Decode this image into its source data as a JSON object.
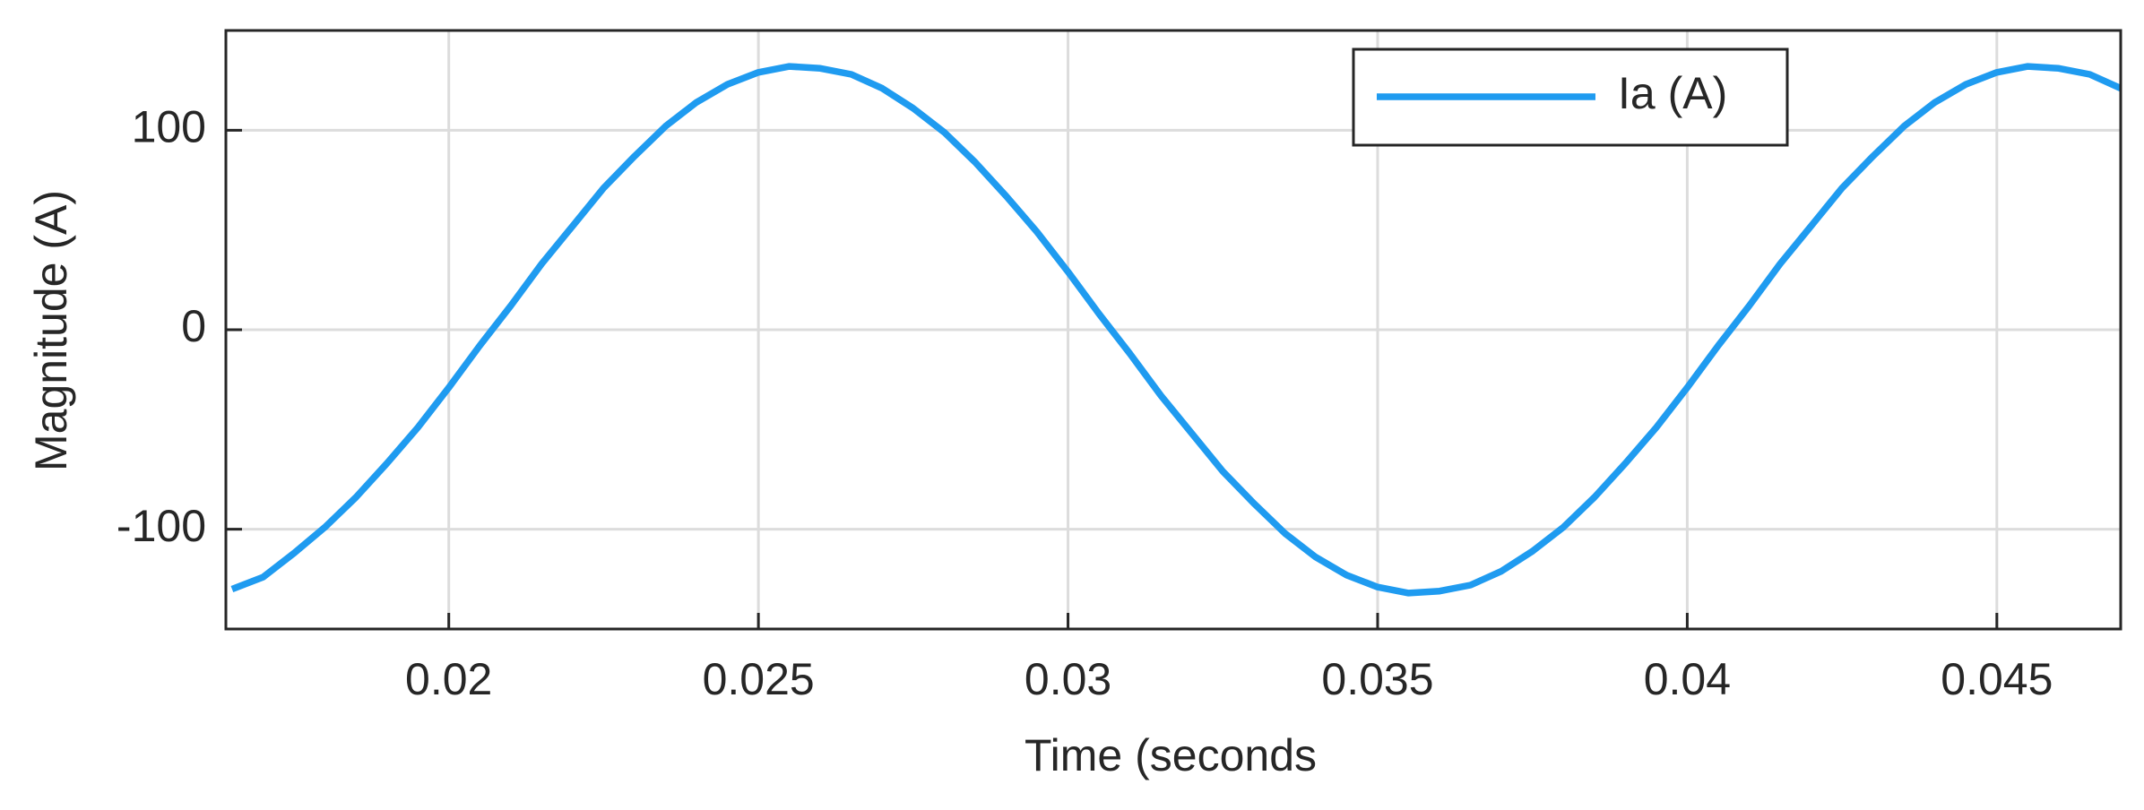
{
  "chart_data": {
    "type": "line",
    "x_label": "Time (seconds",
    "y_label": "Magnitude (A)",
    "x": [
      0.0165,
      0.017,
      0.0175,
      0.018,
      0.0185,
      0.019,
      0.0195,
      0.02,
      0.0205,
      0.021,
      0.0215,
      0.022,
      0.0225,
      0.023,
      0.0235,
      0.024,
      0.0245,
      0.025,
      0.0255,
      0.026,
      0.0265,
      0.027,
      0.0275,
      0.028,
      0.0285,
      0.029,
      0.0295,
      0.03,
      0.0305,
      0.031,
      0.0315,
      0.032,
      0.0325,
      0.033,
      0.0335,
      0.034,
      0.0345,
      0.035,
      0.0355,
      0.036,
      0.0365,
      0.037,
      0.0375,
      0.038,
      0.0385,
      0.039,
      0.0395,
      0.04,
      0.0405,
      0.041,
      0.0415,
      0.042,
      0.0425,
      0.043,
      0.0435,
      0.044,
      0.0445,
      0.045,
      0.0455,
      0.046,
      0.0465,
      0.047
    ],
    "series": [
      {
        "name": "Ia (A)",
        "color": "#1f9bf0",
        "values": [
          -130,
          -124,
          -112,
          -99,
          -84,
          -67,
          -49,
          -29,
          -8,
          12,
          33,
          52,
          71,
          87,
          102,
          114,
          123,
          129,
          132,
          131,
          128,
          121,
          111,
          99,
          84,
          67,
          49,
          29,
          8,
          -12,
          -33,
          -52,
          -71,
          -87,
          -102,
          -114,
          -123,
          -129,
          -132,
          -131,
          -128,
          -121,
          -111,
          -99,
          -84,
          -67,
          -49,
          -29,
          -8,
          12,
          33,
          52,
          71,
          87,
          102,
          114,
          123,
          129,
          132,
          131,
          128,
          121
        ]
      }
    ],
    "xlim": [
      0.0164,
      0.047
    ],
    "ylim": [
      -150,
      150
    ],
    "xticks": [
      0.02,
      0.025,
      0.03,
      0.035,
      0.04,
      0.045
    ],
    "yticks": [
      -100,
      0,
      100
    ],
    "grid": true,
    "legend": "upper right"
  }
}
